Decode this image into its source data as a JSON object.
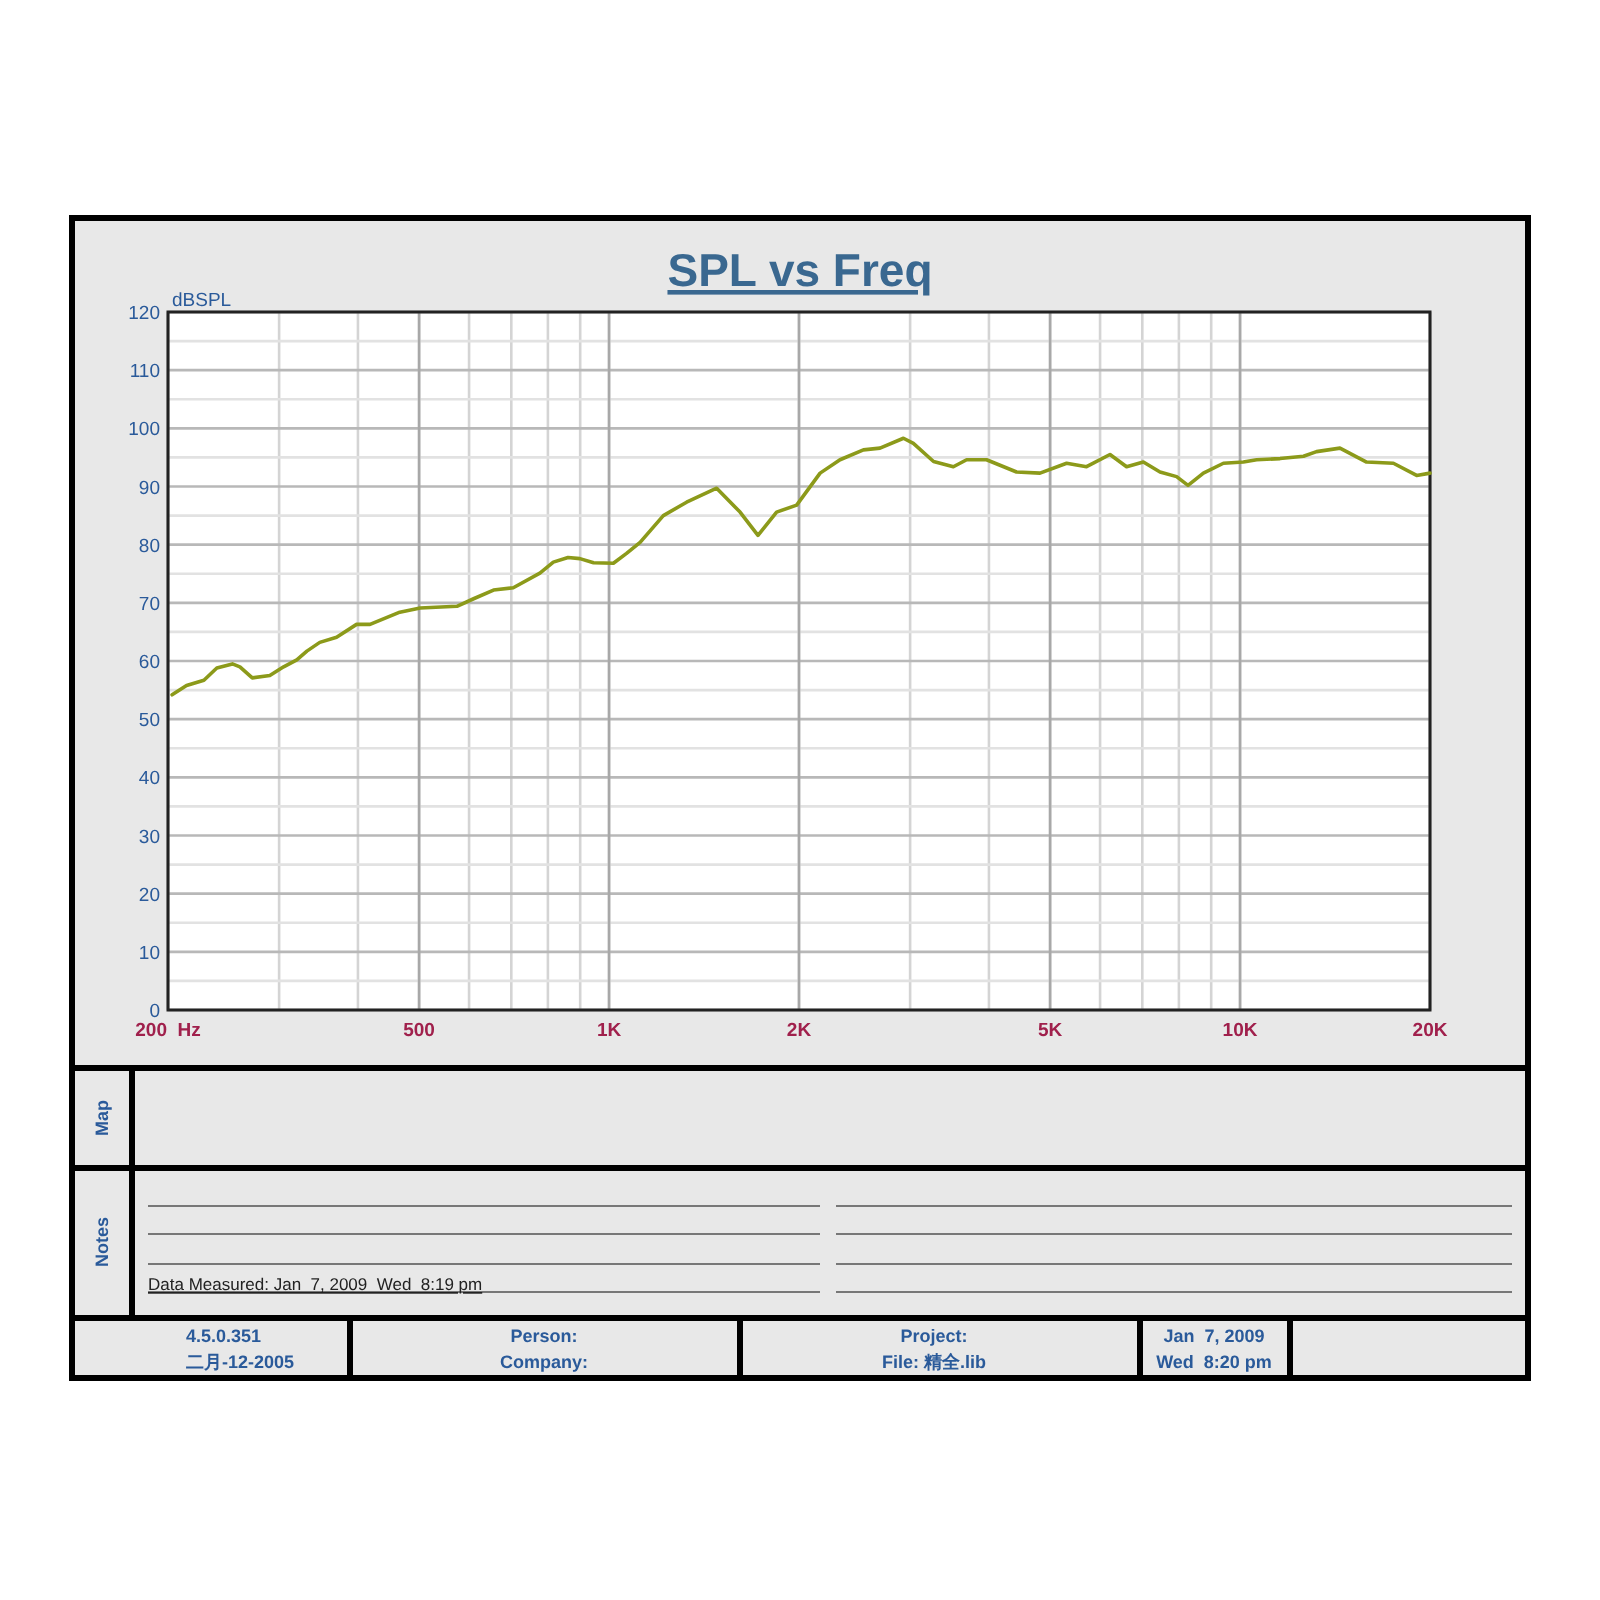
{
  "chart_data": {
    "type": "line",
    "title": "SPL vs Freq",
    "ylabel": "dBSPL",
    "log": "x",
    "grid": true,
    "xlim": [
      200,
      20000
    ],
    "ylim": [
      0,
      120
    ],
    "xticks": [
      {
        "value": 200,
        "label": "200  Hz"
      },
      500,
      {
        "value": 1000,
        "label": "1K"
      },
      {
        "value": 2000,
        "label": "2K"
      },
      {
        "value": 5000,
        "label": "5K"
      },
      {
        "value": 10000,
        "label": "10K"
      },
      {
        "value": 20000,
        "label": "20K"
      }
    ],
    "yticks": [
      0,
      10,
      20,
      30,
      40,
      50,
      60,
      70,
      80,
      90,
      100,
      110,
      120
    ],
    "series": [
      {
        "color": "#8c9a1a",
        "x": [
          203,
          214,
          228,
          239,
          253,
          260,
          272,
          290,
          305,
          320,
          332,
          348,
          370,
          398,
          418,
          466,
          502,
          574,
          610,
          656,
          705,
          777,
          816,
          861,
          899,
          945,
          1016,
          1066,
          1120,
          1219,
          1327,
          1481,
          1613,
          1722,
          1843,
          1983,
          2160,
          2323,
          2530,
          2688,
          2928,
          3036,
          3268,
          3513,
          3687,
          3965,
          4424,
          4819,
          5311,
          5711,
          6221,
          6610,
          7027,
          7467,
          7933,
          8271,
          8748,
          9411,
          10124,
          10624,
          11572,
          12606,
          13220,
          14399,
          15867,
          17500,
          19048,
          20000
        ],
        "values": [
          54.2,
          55.8,
          56.7,
          58.8,
          59.5,
          59,
          57.1,
          57.5,
          59,
          60.2,
          61.7,
          63.2,
          64.1,
          66.3,
          66.3,
          68.4,
          69.1,
          69.4,
          70.7,
          72.2,
          72.6,
          75.1,
          77,
          77.8,
          77.6,
          76.9,
          76.8,
          78.5,
          80.4,
          85,
          87.3,
          89.7,
          85.6,
          81.6,
          85.6,
          86.8,
          92.3,
          94.6,
          96.3,
          96.6,
          98.3,
          97.4,
          94.3,
          93.4,
          94.6,
          94.6,
          92.5,
          92.3,
          94,
          93.4,
          95.5,
          93.4,
          94.2,
          92.5,
          91.7,
          90.2,
          92.3,
          94,
          94.2,
          94.6,
          94.8,
          95.2,
          96,
          96.6,
          94.2,
          94,
          91.9,
          92.3
        ]
      }
    ],
    "annotations": [
      "Map",
      "Notes",
      "Data Measured: Jan  7, 2009  Wed  8:19 pm",
      "4.5.0.351",
      "二月-12-2005",
      "Person:",
      "Company:",
      "Project:",
      "File: 精全.lib",
      "Jan  7, 2009",
      "Wed  8:20 pm"
    ]
  }
}
